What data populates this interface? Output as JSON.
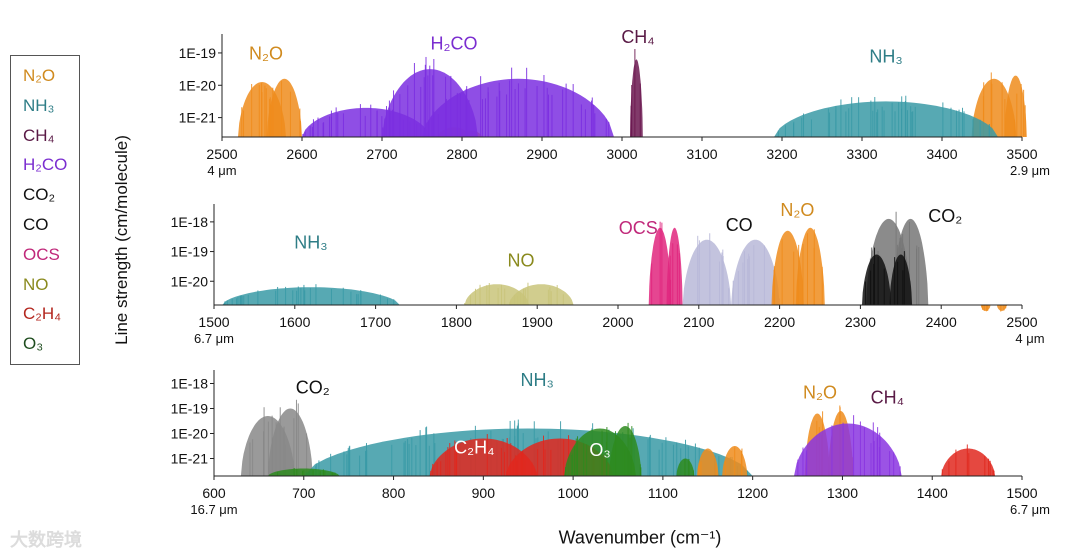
{
  "legend": [
    {
      "label": "N₂O",
      "color": "#d08a1e"
    },
    {
      "label": "NH₃",
      "color": "#2e7d86"
    },
    {
      "label": "CH₄",
      "color": "#5a1a46"
    },
    {
      "label": "H₂CO",
      "color": "#7b2ed0"
    },
    {
      "label": "CO₂",
      "color": "#111111"
    },
    {
      "label": "CO",
      "color": "#111111"
    },
    {
      "label": "OCS",
      "color": "#c0287a"
    },
    {
      "label": "NO",
      "color": "#8a8a1e"
    },
    {
      "label": "C₂H₄",
      "color": "#b3261e"
    },
    {
      "label": "O₃",
      "color": "#1e4d1e"
    }
  ],
  "ylabel": "Line strength (cm/molecule)",
  "xlabel": "Wavenumber (cm⁻¹)",
  "watermark": "大数跨境",
  "chart_data": [
    {
      "type": "area",
      "xlim": [
        2500,
        3500
      ],
      "xticks": [
        "2500",
        "2600",
        "2700",
        "2800",
        "2900",
        "3000",
        "3100",
        "3200",
        "3300",
        "3400",
        "3500"
      ],
      "yscale": "log",
      "yticks": [
        "1E-19",
        "1E-20",
        "1E-21"
      ],
      "wl_left": "4 μm",
      "wl_right": "2.9 μm",
      "series": [
        {
          "name": "N₂O",
          "color": "#ef8c1c",
          "bands": [
            {
              "center": 2550,
              "width": 30,
              "peak": -19.9
            },
            {
              "center": 2578,
              "width": 22,
              "peak": -19.8
            },
            {
              "center": 2790,
              "width": 20,
              "peak": -21.3
            },
            {
              "center": 2810,
              "width": 15,
              "peak": -21.4
            },
            {
              "center": 3465,
              "width": 28,
              "peak": -19.8
            },
            {
              "center": 3492,
              "width": 14,
              "peak": -19.7
            }
          ]
        },
        {
          "name": "H₂CO",
          "color": "#7b2fe0",
          "bands": [
            {
              "center": 2680,
              "width": 80,
              "peak": -20.7
            },
            {
              "center": 2760,
              "width": 60,
              "peak": -19.5
            },
            {
              "center": 2870,
              "width": 120,
              "peak": -19.8
            }
          ]
        },
        {
          "name": "CH₄",
          "color": "#6b1850",
          "bands": [
            {
              "center": 3018,
              "width": 8,
              "peak": -19.2
            }
          ]
        },
        {
          "name": "NH₃",
          "color": "#3a9aa6",
          "bands": [
            {
              "center": 3330,
              "width": 140,
              "peak": -20.5
            }
          ]
        }
      ],
      "labels": [
        {
          "text": "N₂O",
          "x": 2555,
          "y": -19.2,
          "color": "#d08a1e"
        },
        {
          "text": "H₂CO",
          "x": 2790,
          "y": -18.9,
          "color": "#7b2ed0"
        },
        {
          "text": "CH₄",
          "x": 3020,
          "y": -18.7,
          "color": "#5a1a46"
        },
        {
          "text": "NH₃",
          "x": 3330,
          "y": -19.3,
          "color": "#2e7d86"
        }
      ]
    },
    {
      "type": "area",
      "xlim": [
        1500,
        2500
      ],
      "xticks": [
        "1500",
        "1600",
        "1700",
        "1800",
        "1900",
        "2000",
        "2100",
        "2200",
        "2300",
        "2400",
        "2500"
      ],
      "yscale": "log",
      "yticks": [
        "1E-18",
        "1E-19",
        "1E-20"
      ],
      "wl_left": "6.7 μm",
      "wl_right": "4 μm",
      "series": [
        {
          "name": "NH₃",
          "color": "#3a9aa6",
          "bands": [
            {
              "center": 1620,
              "width": 110,
              "peak": -20.2
            }
          ]
        },
        {
          "name": "NO",
          "color": "#c9c47a",
          "bands": [
            {
              "center": 1850,
              "width": 40,
              "peak": -20.1
            },
            {
              "center": 1905,
              "width": 40,
              "peak": -20.1
            }
          ]
        },
        {
          "name": "C₂H₄",
          "color": "#b3261e",
          "bands": [
            {
              "center": 1890,
              "width": 8,
              "peak": -20.8
            }
          ]
        },
        {
          "name": "OCS",
          "color": "#e0267e",
          "bands": [
            {
              "center": 2052,
              "width": 14,
              "peak": -18.2
            },
            {
              "center": 2070,
              "width": 10,
              "peak": -18.2
            }
          ]
        },
        {
          "name": "CO",
          "color": "#b8b8d8",
          "bands": [
            {
              "center": 2110,
              "width": 30,
              "peak": -18.6
            },
            {
              "center": 2170,
              "width": 30,
              "peak": -18.6
            }
          ]
        },
        {
          "name": "N₂O",
          "color": "#ef8c1c",
          "bands": [
            {
              "center": 2210,
              "width": 20,
              "peak": -18.3
            },
            {
              "center": 2238,
              "width": 18,
              "peak": -18.2
            },
            {
              "center": 2455,
              "width": 6,
              "peak": -21
            },
            {
              "center": 2475,
              "width": 6,
              "peak": -21
            }
          ]
        },
        {
          "name": "CO₂",
          "color": "#777777",
          "bands": [
            {
              "center": 2335,
              "width": 28,
              "peak": -17.9
            },
            {
              "center": 2362,
              "width": 22,
              "peak": -17.9
            }
          ]
        },
        {
          "name": "CO₂ (strong)",
          "color": "#111111",
          "bands": [
            {
              "center": 2320,
              "width": 18,
              "peak": -19.1
            },
            {
              "center": 2350,
              "width": 14,
              "peak": -19.1
            }
          ]
        }
      ],
      "labels": [
        {
          "text": "NH₃",
          "x": 1620,
          "y": -18.9,
          "color": "#2e7d86"
        },
        {
          "text": "NO",
          "x": 1880,
          "y": -19.5,
          "color": "#8a8a1e"
        },
        {
          "text": "OCS",
          "x": 2025,
          "y": -18.4,
          "color": "#c0287a"
        },
        {
          "text": "CO",
          "x": 2150,
          "y": -18.3,
          "color": "#111111"
        },
        {
          "text": "N₂O",
          "x": 2222,
          "y": -17.8,
          "color": "#d08a1e"
        },
        {
          "text": "CO₂",
          "x": 2405,
          "y": -18.0,
          "color": "#111111"
        }
      ]
    },
    {
      "type": "area",
      "xlim": [
        600,
        1500
      ],
      "xticks": [
        "600",
        "700",
        "800",
        "900",
        "1000",
        "1100",
        "1200",
        "1300",
        "1400",
        "1500"
      ],
      "yscale": "log",
      "yticks": [
        "1E-18",
        "1E-19",
        "1E-20",
        "1E-21"
      ],
      "wl_left": "16.7 μm",
      "wl_right": "6.7 μm",
      "series": [
        {
          "name": "CO₂",
          "color": "#888888",
          "bands": [
            {
              "center": 660,
              "width": 30,
              "peak": -19.3
            },
            {
              "center": 685,
              "width": 25,
              "peak": -19.0
            }
          ]
        },
        {
          "name": "NH₃",
          "color": "#3a9aa6",
          "bands": [
            {
              "center": 950,
              "width": 250,
              "peak": -19.8
            }
          ]
        },
        {
          "name": "C₂H₄",
          "color": "#e0281e",
          "bands": [
            {
              "center": 900,
              "width": 60,
              "peak": -20.2
            },
            {
              "center": 985,
              "width": 60,
              "peak": -20.2
            },
            {
              "center": 1440,
              "width": 30,
              "peak": -20.6
            }
          ]
        },
        {
          "name": "O₃",
          "color": "#2e8b1e",
          "bands": [
            {
              "center": 700,
              "width": 40,
              "peak": -21.4
            },
            {
              "center": 1030,
              "width": 40,
              "peak": -19.8
            },
            {
              "center": 1058,
              "width": 18,
              "peak": -19.7
            },
            {
              "center": 1125,
              "width": 10,
              "peak": -21
            }
          ]
        },
        {
          "name": "N₂O",
          "color": "#ef8c1c",
          "bands": [
            {
              "center": 1150,
              "width": 12,
              "peak": -20.6
            },
            {
              "center": 1180,
              "width": 14,
              "peak": -20.5
            },
            {
              "center": 1272,
              "width": 14,
              "peak": -19.2
            },
            {
              "center": 1298,
              "width": 14,
              "peak": -19.1
            }
          ]
        },
        {
          "name": "CH₄",
          "color": "#8a35e0",
          "bands": [
            {
              "center": 1306,
              "width": 60,
              "peak": -19.6
            }
          ]
        }
      ],
      "labels": [
        {
          "text": "CO₂",
          "x": 710,
          "y": -18.4,
          "color": "#111111"
        },
        {
          "text": "NH₃",
          "x": 960,
          "y": -18.1,
          "color": "#2e7d86"
        },
        {
          "text": "C₂H₄",
          "x": 890,
          "y": -20.8,
          "color": "#ffffff"
        },
        {
          "text": "O₃",
          "x": 1030,
          "y": -20.9,
          "color": "#ffffff"
        },
        {
          "text": "N₂O",
          "x": 1275,
          "y": -18.6,
          "color": "#d08a1e"
        },
        {
          "text": "CH₄",
          "x": 1350,
          "y": -18.8,
          "color": "#5a1a46"
        }
      ]
    }
  ]
}
